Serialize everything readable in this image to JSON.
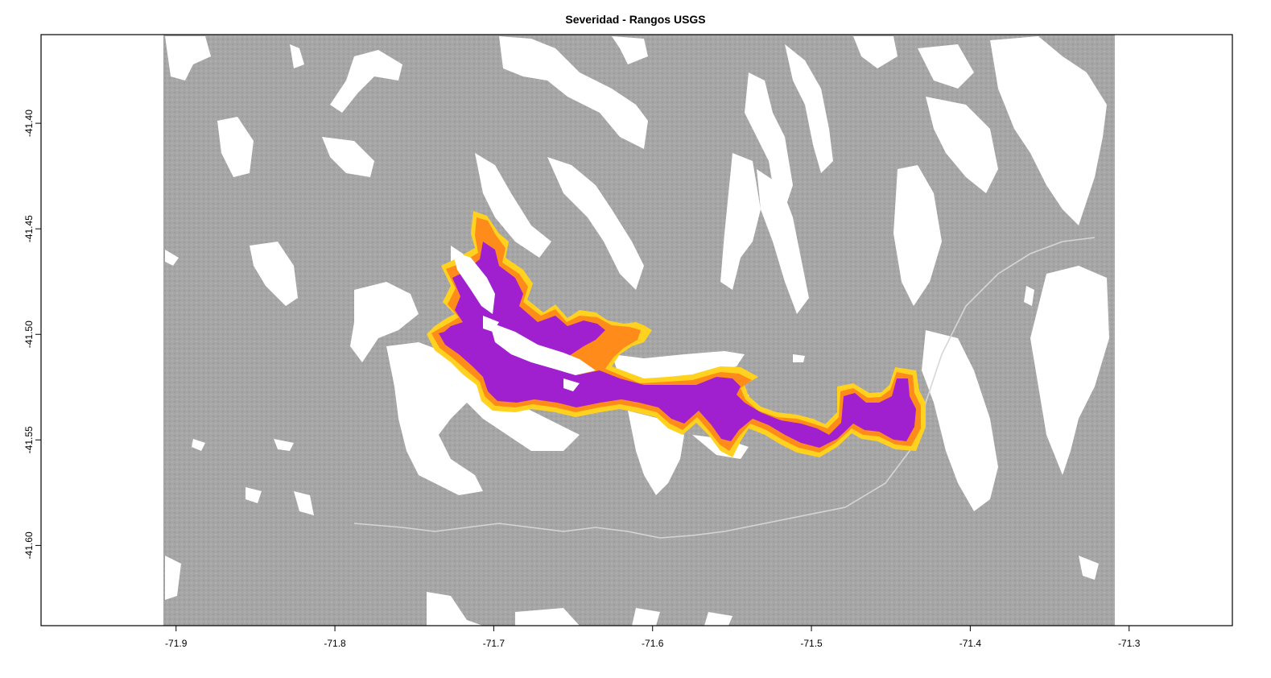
{
  "map": {
    "title": "Severidad - Rangos USGS",
    "x_axis": {
      "min": -71.985,
      "max": -71.235,
      "ticks": [
        {
          "value": -71.9,
          "label": "-71.9"
        },
        {
          "value": -71.8,
          "label": "-71.8"
        },
        {
          "value": -71.7,
          "label": "-71.7"
        },
        {
          "value": -71.6,
          "label": "-71.6"
        },
        {
          "value": -71.5,
          "label": "-71.5"
        },
        {
          "value": -71.4,
          "label": "-71.4"
        },
        {
          "value": -71.3,
          "label": "-71.3"
        }
      ]
    },
    "y_axis": {
      "min": -41.638,
      "max": -41.358,
      "ticks": [
        {
          "value": -41.4,
          "label": "-41.40"
        },
        {
          "value": -41.45,
          "label": "-41.45"
        },
        {
          "value": -41.5,
          "label": "-41.50"
        },
        {
          "value": -41.55,
          "label": "-41.55"
        },
        {
          "value": -41.6,
          "label": "-41.60"
        }
      ]
    },
    "raster_extent": {
      "lon_min": -71.908,
      "lon_max": -71.309,
      "lat_min": -41.638,
      "lat_max": -41.358
    },
    "colors": {
      "background_raster": "#a6a6a6",
      "unburned_white": "#ffffff",
      "severity_high": "#a020d0",
      "severity_moderate": "#ff8c1a",
      "severity_low": "#ffd21f",
      "frame": "#000000"
    }
  }
}
